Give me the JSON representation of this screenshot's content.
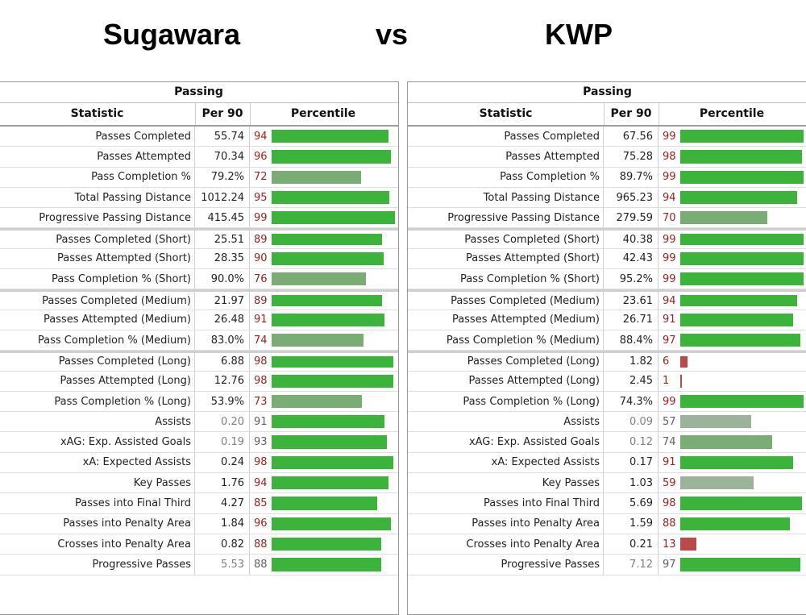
{
  "headings": {
    "left": "Sugawara",
    "vs": "vs",
    "right": "KWP"
  },
  "columns": {
    "statistic": "Statistic",
    "per90": "Per 90",
    "percentile": "Percentile"
  },
  "colors": {
    "high": "#3cb43c",
    "mid": "#7aad74",
    "low": "#9bb29b",
    "bad": "#b94a4a",
    "pct_text": "#9a1f1f"
  },
  "chart_data": [
    {
      "type": "table",
      "player": "Sugawara",
      "section": "Passing",
      "xlim": [
        0,
        100
      ],
      "rows": [
        {
          "stat": "Passes Completed",
          "per90": "55.74",
          "pct": 94
        },
        {
          "stat": "Passes Attempted",
          "per90": "70.34",
          "pct": 96
        },
        {
          "stat": "Pass Completion %",
          "per90": "79.2%",
          "pct": 72
        },
        {
          "stat": "Total Passing Distance",
          "per90": "1012.24",
          "pct": 95
        },
        {
          "stat": "Progressive Passing Distance",
          "per90": "415.45",
          "pct": 99
        },
        {
          "stat": "Passes Completed (Short)",
          "per90": "25.51",
          "pct": 89,
          "group_start": true
        },
        {
          "stat": "Passes Attempted (Short)",
          "per90": "28.35",
          "pct": 90
        },
        {
          "stat": "Pass Completion % (Short)",
          "per90": "90.0%",
          "pct": 76
        },
        {
          "stat": "Passes Completed (Medium)",
          "per90": "21.97",
          "pct": 89,
          "group_start": true
        },
        {
          "stat": "Passes Attempted (Medium)",
          "per90": "26.48",
          "pct": 91
        },
        {
          "stat": "Pass Completion % (Medium)",
          "per90": "83.0%",
          "pct": 74
        },
        {
          "stat": "Passes Completed (Long)",
          "per90": "6.88",
          "pct": 98,
          "group_start": true
        },
        {
          "stat": "Passes Attempted (Long)",
          "per90": "12.76",
          "pct": 98
        },
        {
          "stat": "Pass Completion % (Long)",
          "per90": "53.9%",
          "pct": 73
        },
        {
          "stat": "Assists",
          "per90": "0.20",
          "pct": 91,
          "muted": true
        },
        {
          "stat": "xAG: Exp. Assisted Goals",
          "per90": "0.19",
          "pct": 93,
          "muted": true
        },
        {
          "stat": "xA: Expected Assists",
          "per90": "0.24",
          "pct": 98
        },
        {
          "stat": "Key Passes",
          "per90": "1.76",
          "pct": 94
        },
        {
          "stat": "Passes into Final Third",
          "per90": "4.27",
          "pct": 85
        },
        {
          "stat": "Passes into Penalty Area",
          "per90": "1.84",
          "pct": 96
        },
        {
          "stat": "Crosses into Penalty Area",
          "per90": "0.82",
          "pct": 88
        },
        {
          "stat": "Progressive Passes",
          "per90": "5.53",
          "pct": 88,
          "muted": true
        }
      ]
    },
    {
      "type": "table",
      "player": "KWP",
      "section": "Passing",
      "xlim": [
        0,
        100
      ],
      "rows": [
        {
          "stat": "Passes Completed",
          "per90": "67.56",
          "pct": 99
        },
        {
          "stat": "Passes Attempted",
          "per90": "75.28",
          "pct": 98
        },
        {
          "stat": "Pass Completion %",
          "per90": "89.7%",
          "pct": 99
        },
        {
          "stat": "Total Passing Distance",
          "per90": "965.23",
          "pct": 94
        },
        {
          "stat": "Progressive Passing Distance",
          "per90": "279.59",
          "pct": 70
        },
        {
          "stat": "Passes Completed (Short)",
          "per90": "40.38",
          "pct": 99,
          "group_start": true
        },
        {
          "stat": "Passes Attempted (Short)",
          "per90": "42.43",
          "pct": 99
        },
        {
          "stat": "Pass Completion % (Short)",
          "per90": "95.2%",
          "pct": 99
        },
        {
          "stat": "Passes Completed (Medium)",
          "per90": "23.61",
          "pct": 94,
          "group_start": true
        },
        {
          "stat": "Passes Attempted (Medium)",
          "per90": "26.71",
          "pct": 91
        },
        {
          "stat": "Pass Completion % (Medium)",
          "per90": "88.4%",
          "pct": 97
        },
        {
          "stat": "Passes Completed (Long)",
          "per90": "1.82",
          "pct": 6,
          "group_start": true
        },
        {
          "stat": "Passes Attempted (Long)",
          "per90": "2.45",
          "pct": 1
        },
        {
          "stat": "Pass Completion % (Long)",
          "per90": "74.3%",
          "pct": 99
        },
        {
          "stat": "Assists",
          "per90": "0.09",
          "pct": 57,
          "muted": true
        },
        {
          "stat": "xAG: Exp. Assisted Goals",
          "per90": "0.12",
          "pct": 74,
          "muted": true
        },
        {
          "stat": "xA: Expected Assists",
          "per90": "0.17",
          "pct": 91
        },
        {
          "stat": "Key Passes",
          "per90": "1.03",
          "pct": 59
        },
        {
          "stat": "Passes into Final Third",
          "per90": "5.69",
          "pct": 98
        },
        {
          "stat": "Passes into Penalty Area",
          "per90": "1.59",
          "pct": 88
        },
        {
          "stat": "Crosses into Penalty Area",
          "per90": "0.21",
          "pct": 13
        },
        {
          "stat": "Progressive Passes",
          "per90": "7.12",
          "pct": 97,
          "muted": true
        }
      ]
    }
  ]
}
